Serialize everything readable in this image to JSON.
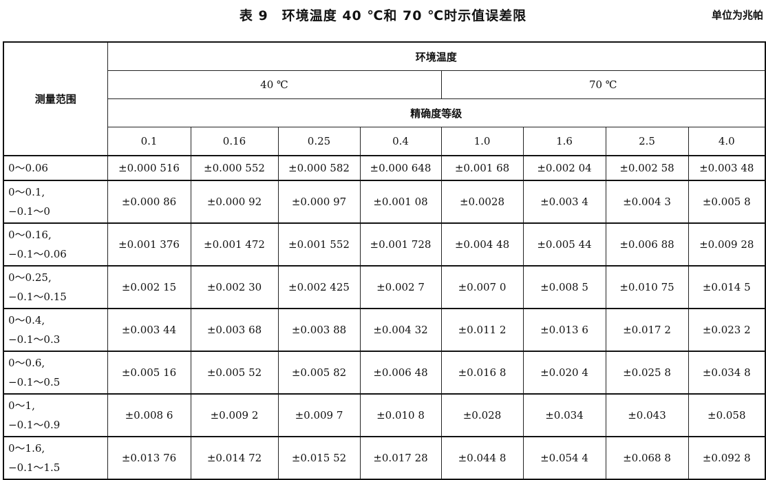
{
  "title": "表 9　环境温度 40 ℃和 70 ℃时示值误差限",
  "unit": "单位为兆帕",
  "table": {
    "range_header": "测量范围",
    "env_temp_header": "环境温度",
    "temps": [
      "40 ℃",
      "70 ℃"
    ],
    "accuracy_header": "精确度等级",
    "classes": [
      "0.1",
      "0.16",
      "0.25",
      "0.4",
      "1.0",
      "1.6",
      "2.5",
      "4.0"
    ],
    "rows": [
      {
        "range": [
          "0～0.06"
        ],
        "values": [
          "±0.000 516",
          "±0.000 552",
          "±0.000 582",
          "±0.000 648",
          "±0.001 68",
          "±0.002 04",
          "±0.002 58",
          "±0.003 48"
        ]
      },
      {
        "range": [
          "0～0.1,",
          "−0.1～0"
        ],
        "values": [
          "±0.000 86",
          "±0.000 92",
          "±0.000 97",
          "±0.001 08",
          "±0.0028",
          "±0.003 4",
          "±0.004 3",
          "±0.005 8"
        ]
      },
      {
        "range": [
          "0～0.16,",
          "−0.1～0.06"
        ],
        "values": [
          "±0.001 376",
          "±0.001 472",
          "±0.001 552",
          "±0.001 728",
          "±0.004 48",
          "±0.005 44",
          "±0.006 88",
          "±0.009 28"
        ]
      },
      {
        "range": [
          "0～0.25,",
          "−0.1～0.15"
        ],
        "values": [
          "±0.002 15",
          "±0.002 30",
          "±0.002 425",
          "±0.002 7",
          "±0.007 0",
          "±0.008 5",
          "±0.010 75",
          "±0.014 5"
        ]
      },
      {
        "range": [
          "0～0.4,",
          "−0.1～0.3"
        ],
        "values": [
          "±0.003 44",
          "±0.003 68",
          "±0.003 88",
          "±0.004 32",
          "±0.011 2",
          "±0.013 6",
          "±0.017 2",
          "±0.023 2"
        ]
      },
      {
        "range": [
          "0～0.6,",
          "−0.1～0.5"
        ],
        "values": [
          "±0.005 16",
          "±0.005 52",
          "±0.005 82",
          "±0.006 48",
          "±0.016 8",
          "±0.020 4",
          "±0.025 8",
          "±0.034 8"
        ]
      },
      {
        "range": [
          "0～1,",
          "−0.1～0.9"
        ],
        "values": [
          "±0.008 6",
          "±0.009 2",
          "±0.009 7",
          "±0.010 8",
          "±0.028",
          "±0.034",
          "±0.043",
          "±0.058"
        ]
      },
      {
        "range": [
          "0～1.6,",
          "−0.1～1.5"
        ],
        "values": [
          "±0.013 76",
          "±0.014 72",
          "±0.015 52",
          "±0.017 28",
          "±0.044 8",
          "±0.054 4",
          "±0.068 8",
          "±0.092 8"
        ]
      }
    ]
  }
}
